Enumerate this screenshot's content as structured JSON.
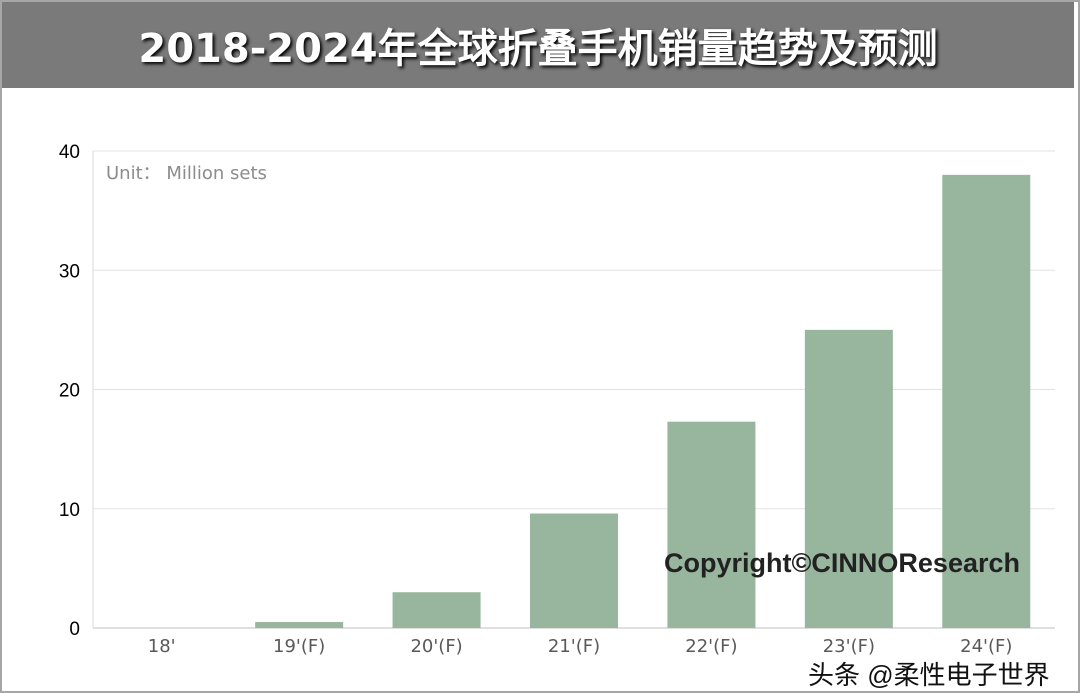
{
  "title": "2018-2024年全球折叠手机销量趋势及预测",
  "chart_data": {
    "type": "bar",
    "title": "2018-2024年全球折叠手机销量趋势及预测",
    "unit_note": "Unit： Million sets",
    "categories": [
      "18'",
      "19'(F)",
      "20'(F)",
      "21'(F)",
      "22'(F)",
      "23'(F)",
      "24'(F)"
    ],
    "values": [
      0,
      0.5,
      3.0,
      9.6,
      17.3,
      25.0,
      38.0
    ],
    "ylim": [
      0,
      40
    ],
    "yticks": [
      0,
      10,
      20,
      30,
      40
    ],
    "grid": true,
    "bar_color": "#98b59d"
  },
  "watermark": "Copyright©CINNOResearch",
  "source_watermark": "头条 @柔性电子世界"
}
